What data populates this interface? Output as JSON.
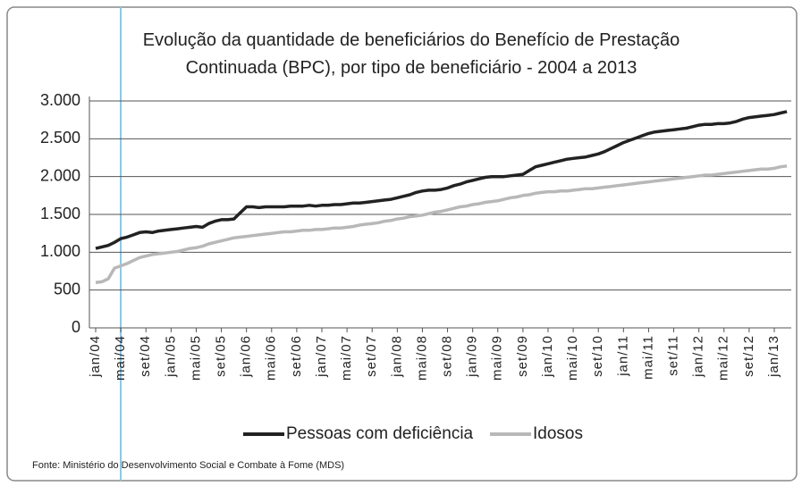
{
  "chart_data": {
    "type": "line",
    "title": "Evolução da quantidade de beneficiários do Benefício de Prestação Continuada (BPC), por tipo de beneficiário - 2004 a 2013",
    "source": "Fonte: Ministério do Desenvolvimento Social e Combate à Fome (MDS)",
    "categories": [
      "jan/04",
      null,
      null,
      null,
      "mai/04",
      null,
      null,
      null,
      "set/04",
      null,
      null,
      null,
      "jan/05",
      null,
      null,
      null,
      "mai/05",
      null,
      null,
      null,
      "set/05",
      null,
      null,
      null,
      "jan/06",
      null,
      null,
      null,
      "mai/06",
      null,
      null,
      null,
      "set/06",
      null,
      null,
      null,
      "jan/07",
      null,
      null,
      null,
      "mai/07",
      null,
      null,
      null,
      "set/07",
      null,
      null,
      null,
      "jan/08",
      null,
      null,
      null,
      "mai/08",
      null,
      null,
      null,
      "set/08",
      null,
      null,
      null,
      "jan/09",
      null,
      null,
      null,
      "mai/09",
      null,
      null,
      null,
      "set/09",
      null,
      null,
      null,
      "jan/10",
      null,
      null,
      null,
      "mai/10",
      null,
      null,
      null,
      "set/10",
      null,
      null,
      null,
      "jan/11",
      null,
      null,
      null,
      "mai/11",
      null,
      null,
      null,
      "set/11",
      null,
      null,
      null,
      "jan/12",
      null,
      null,
      null,
      "mai/12",
      null,
      null,
      null,
      "set/12",
      null,
      null,
      null,
      "jan/13",
      null,
      null
    ],
    "series": [
      {
        "name": "Pessoas com deficiência",
        "color": "#222222",
        "values": [
          1050,
          1070,
          1090,
          1130,
          1180,
          1200,
          1230,
          1260,
          1270,
          1260,
          1280,
          1290,
          1300,
          1310,
          1320,
          1330,
          1340,
          1330,
          1380,
          1410,
          1430,
          1430,
          1440,
          1520,
          1600,
          1600,
          1590,
          1600,
          1600,
          1600,
          1600,
          1610,
          1610,
          1610,
          1620,
          1610,
          1620,
          1620,
          1630,
          1630,
          1640,
          1650,
          1650,
          1660,
          1670,
          1680,
          1690,
          1700,
          1720,
          1740,
          1760,
          1790,
          1810,
          1820,
          1820,
          1830,
          1850,
          1880,
          1900,
          1930,
          1950,
          1970,
          1990,
          2000,
          2000,
          2000,
          2010,
          2020,
          2030,
          2080,
          2130,
          2150,
          2170,
          2190,
          2210,
          2230,
          2240,
          2250,
          2260,
          2280,
          2300,
          2330,
          2370,
          2410,
          2450,
          2480,
          2510,
          2540,
          2570,
          2590,
          2600,
          2610,
          2620,
          2630,
          2640,
          2660,
          2680,
          2690,
          2690,
          2700,
          2700,
          2710,
          2730,
          2760,
          2780,
          2790,
          2800,
          2810,
          2820,
          2840,
          2860
        ]
      },
      {
        "name": "Idosos",
        "color": "#b8b8b8",
        "values": [
          600,
          610,
          650,
          790,
          820,
          850,
          890,
          930,
          950,
          970,
          980,
          990,
          1000,
          1010,
          1030,
          1050,
          1060,
          1080,
          1110,
          1130,
          1150,
          1170,
          1190,
          1200,
          1210,
          1220,
          1230,
          1240,
          1250,
          1260,
          1270,
          1270,
          1280,
          1290,
          1290,
          1300,
          1300,
          1310,
          1320,
          1320,
          1330,
          1340,
          1360,
          1370,
          1380,
          1390,
          1410,
          1420,
          1440,
          1450,
          1470,
          1480,
          1490,
          1510,
          1530,
          1540,
          1560,
          1580,
          1600,
          1610,
          1630,
          1640,
          1660,
          1670,
          1680,
          1700,
          1720,
          1730,
          1750,
          1760,
          1780,
          1790,
          1800,
          1800,
          1810,
          1810,
          1820,
          1830,
          1840,
          1840,
          1850,
          1860,
          1870,
          1880,
          1890,
          1900,
          1910,
          1920,
          1930,
          1940,
          1950,
          1960,
          1970,
          1980,
          1990,
          2000,
          2010,
          2020,
          2020,
          2030,
          2040,
          2050,
          2060,
          2070,
          2080,
          2090,
          2100,
          2100,
          2110,
          2130,
          2140
        ]
      }
    ],
    "ylim": [
      0,
      3000
    ],
    "yticks": [
      0,
      500,
      {
        "value": 1000,
        "label": "1.000"
      },
      {
        "value": 1500,
        "label": "1.500"
      },
      {
        "value": 2000,
        "label": "2.000"
      },
      {
        "value": 2500,
        "label": "2.500"
      },
      {
        "value": 3000,
        "label": "3.000"
      }
    ],
    "grid": true,
    "legend": "bottom"
  }
}
